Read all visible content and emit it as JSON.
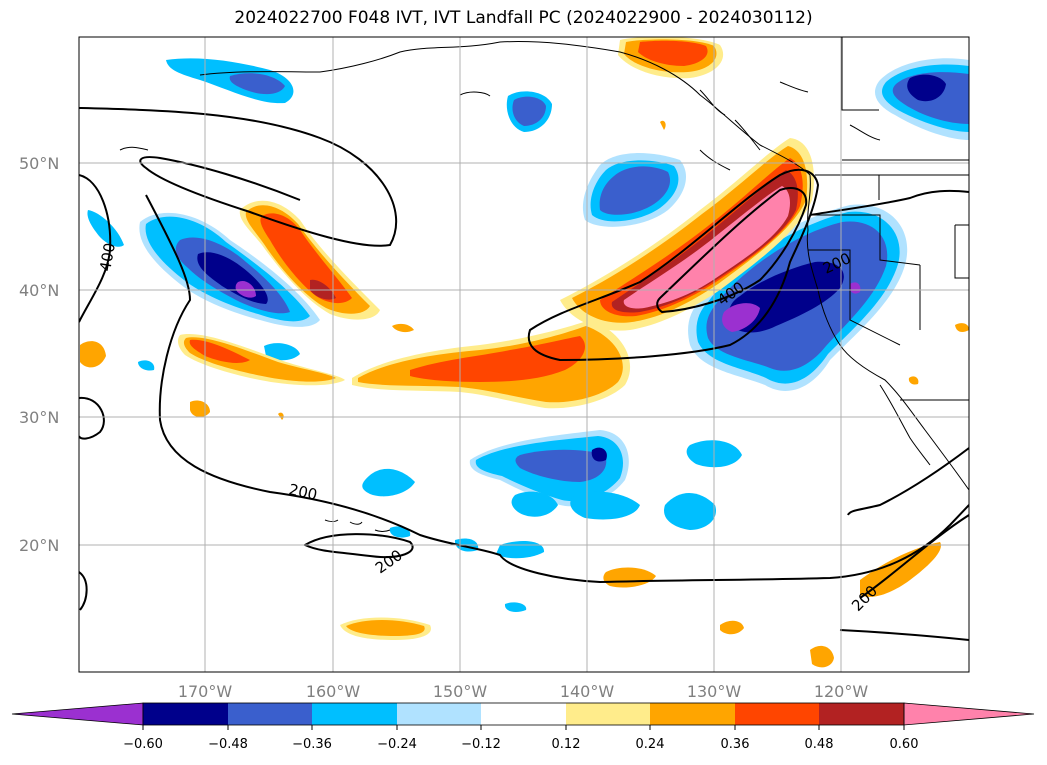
{
  "title": "2024022700 F048 IVT, IVT Landfall PC (2024022900 - 2024030112)",
  "map": {
    "lat_labels": [
      "50°N",
      "40°N",
      "30°N",
      "20°N"
    ],
    "lon_labels": [
      "170°W",
      "160°W",
      "150°W",
      "140°W",
      "130°W",
      "120°W"
    ],
    "contour_labels": [
      "400",
      "400",
      "200",
      "200",
      "200",
      "200"
    ]
  },
  "colorbar": {
    "ticks": [
      "−0.60",
      "−0.48",
      "−0.36",
      "−0.24",
      "−0.12",
      "0.12",
      "0.24",
      "0.36",
      "0.48",
      "0.60"
    ],
    "colors": [
      "#9b30d0",
      "#00008b",
      "#3a5fcd",
      "#00bfff",
      "#b0e2ff",
      "#ffffff",
      "#ffec8b",
      "#ffa500",
      "#ff4500",
      "#b22222",
      "#ff82ab"
    ]
  }
}
